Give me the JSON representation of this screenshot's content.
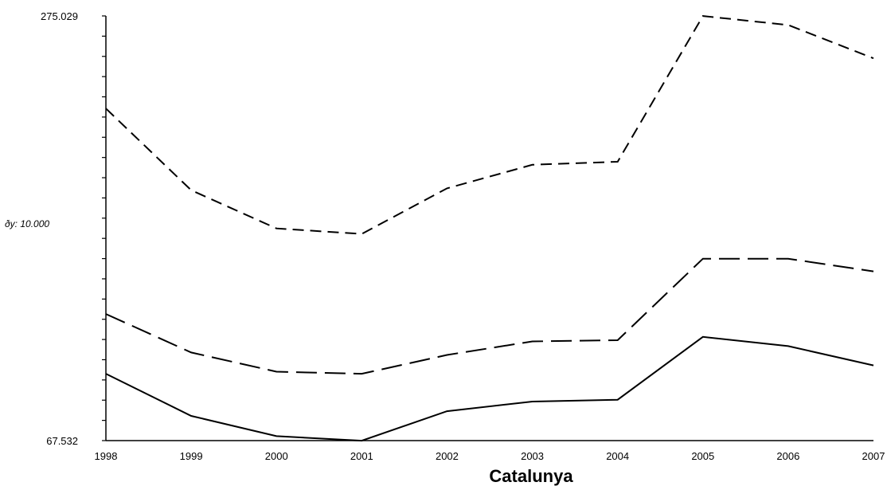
{
  "chart_data": {
    "type": "line",
    "title": "Catalunya",
    "x": [
      1998,
      1999,
      2000,
      2001,
      2002,
      2003,
      2004,
      2005,
      2006,
      2007
    ],
    "x_tick_labels": [
      "1998",
      "1999",
      "2000",
      "2001",
      "2002",
      "2003",
      "2004",
      "2005",
      "2006",
      "2007"
    ],
    "ylim": [
      67.532,
      275.029
    ],
    "y_tick_labels": [
      "275.029",
      "67.532"
    ],
    "y_note": "ðy: 10.000",
    "grid": false,
    "series": [
      {
        "style": "dashed",
        "color": "#000000",
        "values": [
          229.8,
          189.9,
          171.2,
          168.5,
          190.8,
          202.3,
          203.8,
          275.0,
          270.6,
          254.3
        ]
      },
      {
        "style": "long-dash",
        "color": "#000000",
        "values": [
          129.4,
          110.6,
          101.2,
          100.2,
          109.4,
          116.0,
          116.6,
          156.4,
          156.4,
          150.2
        ]
      },
      {
        "style": "solid",
        "color": "#000000",
        "values": [
          100.2,
          79.6,
          69.7,
          67.5,
          81.9,
          86.6,
          87.5,
          118.2,
          113.7,
          104.3
        ]
      }
    ]
  }
}
